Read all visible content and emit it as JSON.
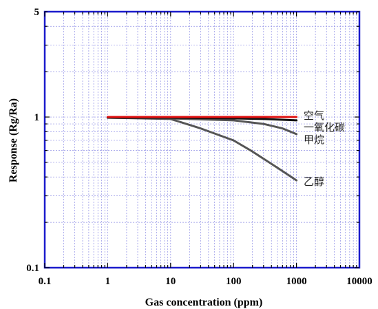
{
  "chart_data": {
    "type": "line",
    "xlabel": "Gas concentration (ppm)",
    "ylabel": "Response (Rg/Ra)",
    "xscale": "log",
    "yscale": "log",
    "xlim": [
      0.1,
      10000
    ],
    "ylim": [
      0.1,
      5
    ],
    "x_ticks": [
      "0.1",
      "1",
      "10",
      "100",
      "1000",
      "10000"
    ],
    "y_ticks": [
      {
        "value": 0.1,
        "label": "0.1"
      },
      {
        "value": 1,
        "label": "1"
      },
      {
        "value": 5,
        "label": "5"
      }
    ],
    "grid": true,
    "grid_color": "#8f8fe6",
    "axis_color": "#1a1acc",
    "series": [
      {
        "name": "空气",
        "color": "#e01010",
        "x": [
          1,
          10,
          100,
          1000
        ],
        "y": [
          1.0,
          1.0,
          1.0,
          1.0
        ]
      },
      {
        "name": "一氧化碳",
        "color": "#111111",
        "x": [
          1,
          10,
          100,
          300,
          1000
        ],
        "y": [
          0.99,
          0.99,
          0.98,
          0.97,
          0.95
        ]
      },
      {
        "name": "甲烷",
        "color": "#555555",
        "x": [
          1,
          10,
          100,
          300,
          600,
          1000
        ],
        "y": [
          0.99,
          0.98,
          0.95,
          0.9,
          0.84,
          0.77
        ]
      },
      {
        "name": "乙醇",
        "color": "#555555",
        "x": [
          1,
          10,
          30,
          100,
          200,
          500,
          1000
        ],
        "y": [
          0.99,
          0.97,
          0.84,
          0.7,
          0.59,
          0.46,
          0.38
        ]
      }
    ]
  }
}
